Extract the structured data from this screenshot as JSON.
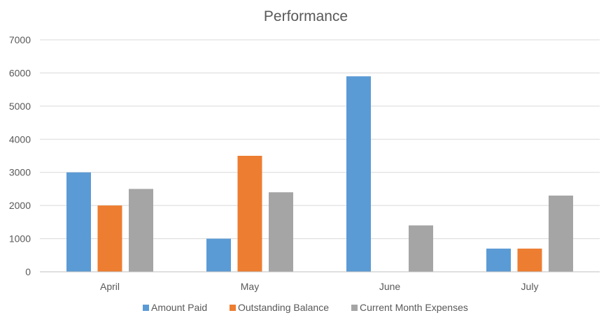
{
  "chart_data": {
    "type": "bar",
    "title": "Performance",
    "xlabel": "",
    "ylabel": "",
    "categories": [
      "April",
      "May",
      "June",
      "July"
    ],
    "series": [
      {
        "name": "Amount Paid",
        "color": "#5B9BD5",
        "values": [
          3000,
          1000,
          5900,
          700
        ]
      },
      {
        "name": "Outstanding Balance",
        "color": "#ED7D31",
        "values": [
          2000,
          3500,
          0,
          700
        ]
      },
      {
        "name": "Current Month Expenses",
        "color": "#A5A5A5",
        "values": [
          2500,
          2400,
          1400,
          2300
        ]
      }
    ],
    "ylim": [
      0,
      7000
    ],
    "yticks": [
      0,
      1000,
      2000,
      3000,
      4000,
      5000,
      6000,
      7000
    ],
    "grid": true,
    "legend_position": "bottom",
    "gridline_color": "#D9D9D9",
    "axis_color": "#BFBFBF",
    "text_color": "#595959"
  }
}
